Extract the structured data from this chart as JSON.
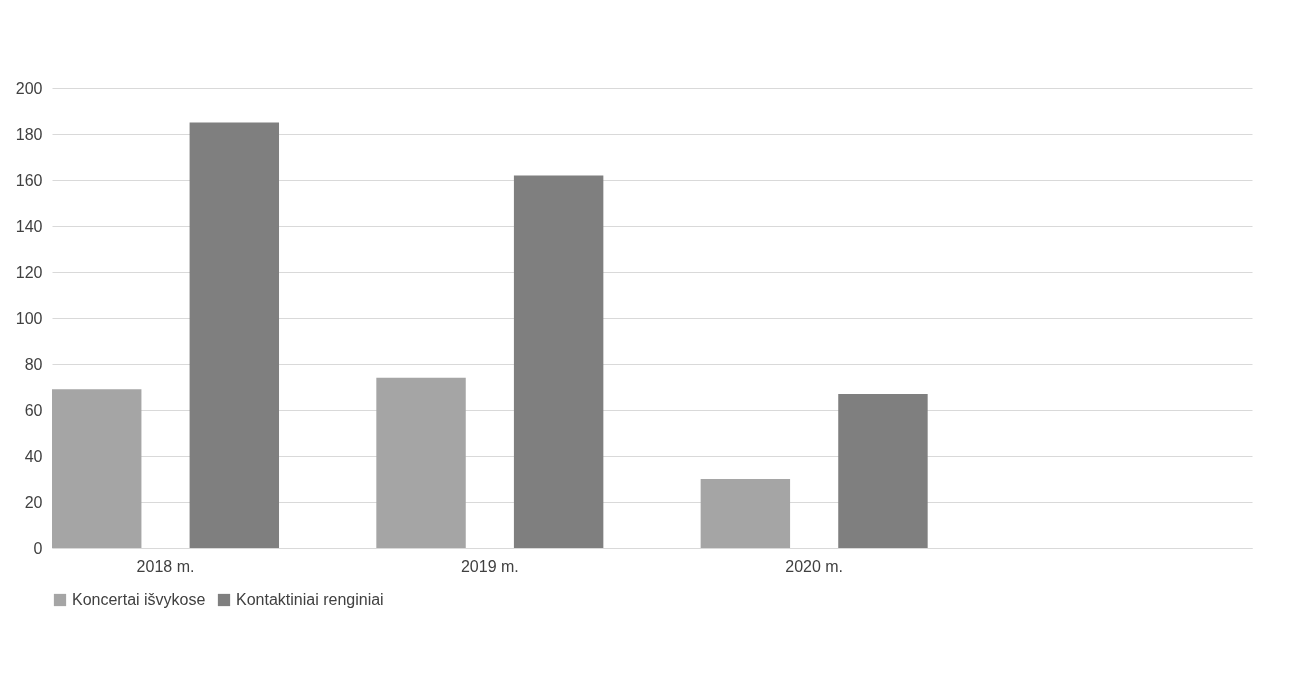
{
  "chart_data": {
    "type": "bar",
    "categories": [
      "2018 m.",
      "2019 m.",
      "2020 m.",
      null
    ],
    "series": [
      {
        "name": "Koncertai išvykose",
        "color": "#a5a5a5",
        "values": [
          69,
          74,
          30,
          null
        ]
      },
      {
        "name": "Kontaktiniai renginiai",
        "color": "#7f7f7f",
        "values": [
          185,
          162,
          67,
          null
        ]
      }
    ],
    "ylim": [
      0,
      200
    ],
    "yticks": [
      0,
      20,
      40,
      60,
      80,
      100,
      120,
      140,
      160,
      180,
      200
    ],
    "grid": "y",
    "legend": "bottom"
  }
}
